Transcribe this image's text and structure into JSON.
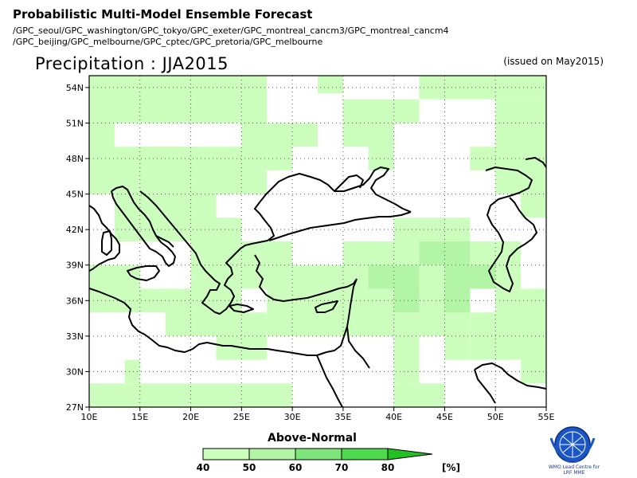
{
  "header": {
    "title": "Probabilistic Multi-Model Ensemble Forecast",
    "models_line1": "/GPC_seoul/GPC_washington/GPC_tokyo/GPC_exeter/GPC_montreal_cancm3/GPC_montreal_cancm4",
    "models_line2": "/GPC_beijing/GPC_melbourne/GPC_cptec/GPC_pretoria/GPC_melbourne"
  },
  "map": {
    "title": "Precipitation : JJA2015",
    "issued": "(issued on May2015)",
    "lon_range": [
      10,
      55
    ],
    "lat_range": [
      27,
      55
    ],
    "x_ticks": [
      "10E",
      "15E",
      "20E",
      "25E",
      "30E",
      "35E",
      "40E",
      "45E",
      "50E",
      "55E"
    ],
    "y_ticks": [
      "54N",
      "51N",
      "48N",
      "45N",
      "42N",
      "39N",
      "36N",
      "33N",
      "30N",
      "27N"
    ],
    "grid": "dotted",
    "category": "Above-Normal",
    "colors": {
      "c40": "#ccffbe",
      "c50": "#b2f5a6",
      "c60": "#7ee57a",
      "c70": "#4fd94f",
      "c80": "#22c022"
    }
  },
  "legend": {
    "title": "Above-Normal",
    "labels": [
      "40",
      "50",
      "60",
      "70",
      "80"
    ],
    "unit": "[%]"
  },
  "logo": {
    "line1": "WMO Lead Centre for",
    "line2": "LRF MME"
  }
}
